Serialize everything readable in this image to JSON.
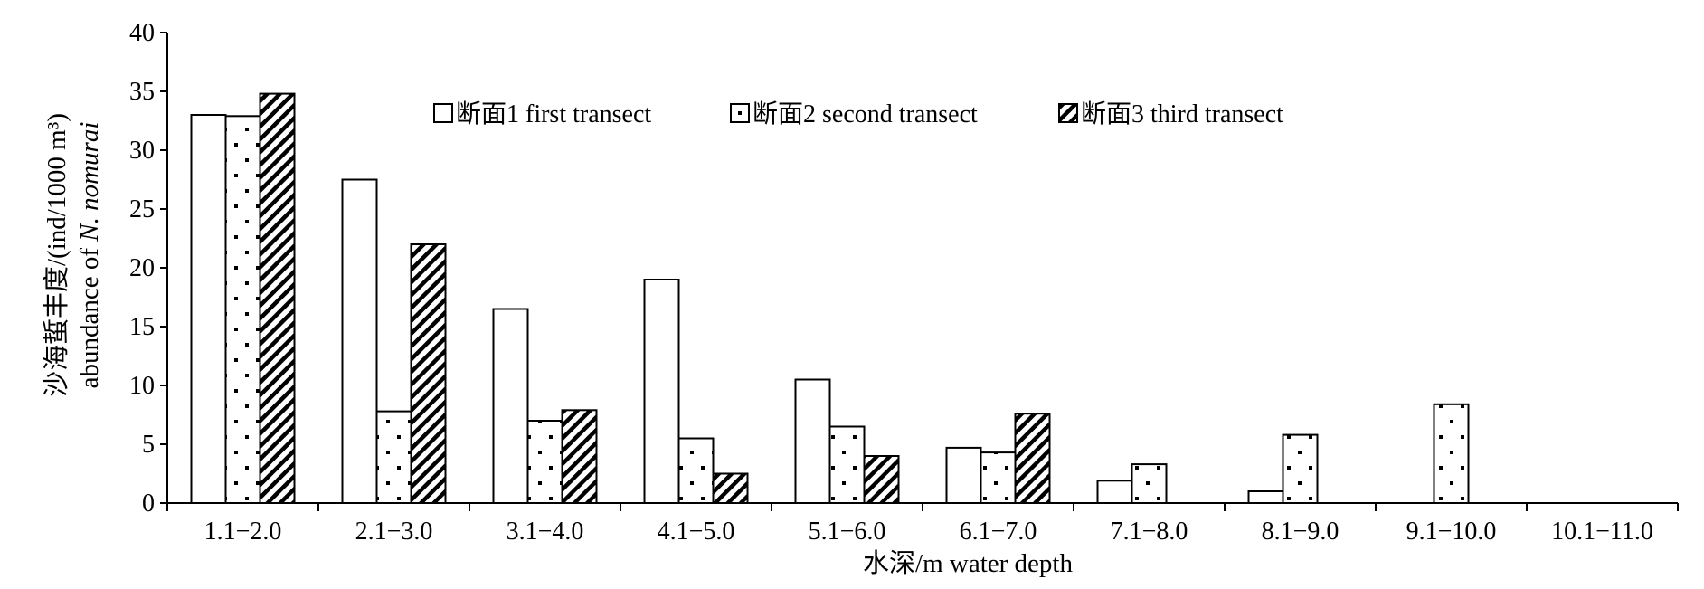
{
  "chart_data": {
    "type": "bar",
    "title": "",
    "xlabel": "水深/m water depth",
    "ylabel_line1": "沙海蜇丰度/(ind/1000 m³)",
    "ylabel_line2_prefix": "abundance of ",
    "ylabel_line2_italic": "N. nomurai",
    "categories": [
      "1.1−2.0",
      "2.1−3.0",
      "3.1−4.0",
      "4.1−5.0",
      "5.1−6.0",
      "6.1−7.0",
      "7.1−8.0",
      "8.1−9.0",
      "9.1−10.0",
      "10.1−11.0"
    ],
    "series": [
      {
        "name": "断面1 first transect",
        "pattern": "plain",
        "values": [
          33.0,
          27.5,
          16.5,
          19.0,
          10.5,
          4.7,
          1.9,
          1.0,
          null,
          null
        ]
      },
      {
        "name": "断面2 second transect",
        "pattern": "dots",
        "values": [
          32.9,
          7.8,
          7.0,
          5.5,
          6.5,
          4.3,
          3.3,
          5.8,
          8.4,
          null
        ]
      },
      {
        "name": "断面3 third transect",
        "pattern": "hatch",
        "values": [
          34.8,
          22.0,
          7.9,
          2.5,
          4.0,
          7.6,
          null,
          null,
          null,
          null
        ]
      }
    ],
    "yticks": [
      0,
      5,
      10,
      15,
      20,
      25,
      30,
      35,
      40
    ],
    "ylim": [
      0,
      40
    ],
    "grid": false,
    "legend_position": "top-center"
  }
}
